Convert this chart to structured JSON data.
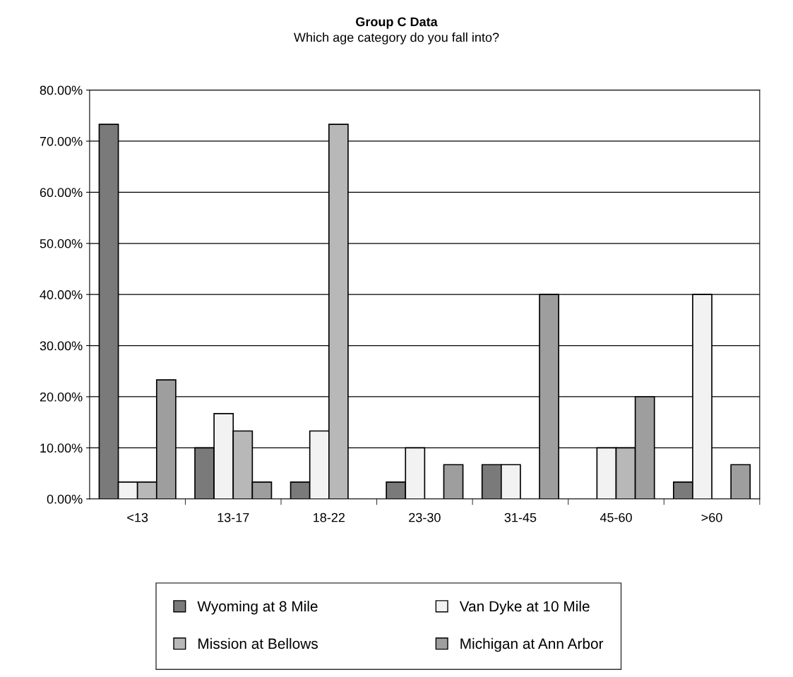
{
  "chart_data": {
    "type": "bar",
    "title": "Group C Data",
    "subtitle": "Which age category do you fall into?",
    "categories": [
      "<13",
      "13-17",
      "18-22",
      "23-30",
      "31-45",
      "45-60",
      ">60"
    ],
    "series": [
      {
        "name": "Wyoming at 8 Mile",
        "color": "#7a7a7a",
        "values": [
          73.3,
          10,
          3.3,
          3.3,
          6.7,
          0,
          3.3
        ]
      },
      {
        "name": "Van Dyke at 10 Mile",
        "color": "#f2f2f2",
        "values": [
          3.3,
          16.7,
          13.3,
          10,
          6.7,
          10,
          40
        ]
      },
      {
        "name": "Mission at Bellows",
        "color": "#b8b8b8",
        "values": [
          3.3,
          13.3,
          73.3,
          0,
          0,
          10,
          0
        ]
      },
      {
        "name": "Michigan at Ann Arbor",
        "color": "#9e9e9e",
        "values": [
          23.3,
          3.3,
          0,
          6.7,
          40,
          20,
          6.7
        ]
      }
    ],
    "ylim": [
      0,
      80
    ],
    "yticks": [
      {
        "value": 0,
        "label": "0.00%"
      },
      {
        "value": 10,
        "label": "10.00%"
      },
      {
        "value": 20,
        "label": "20.00%"
      },
      {
        "value": 30,
        "label": "30.00%"
      },
      {
        "value": 40,
        "label": "40.00%"
      },
      {
        "value": 50,
        "label": "50.00%"
      },
      {
        "value": 60,
        "label": "60.00%"
      },
      {
        "value": 70,
        "label": "70.00%"
      },
      {
        "value": 80,
        "label": "80.00%"
      }
    ],
    "grid": "y",
    "legend": "bottom"
  }
}
